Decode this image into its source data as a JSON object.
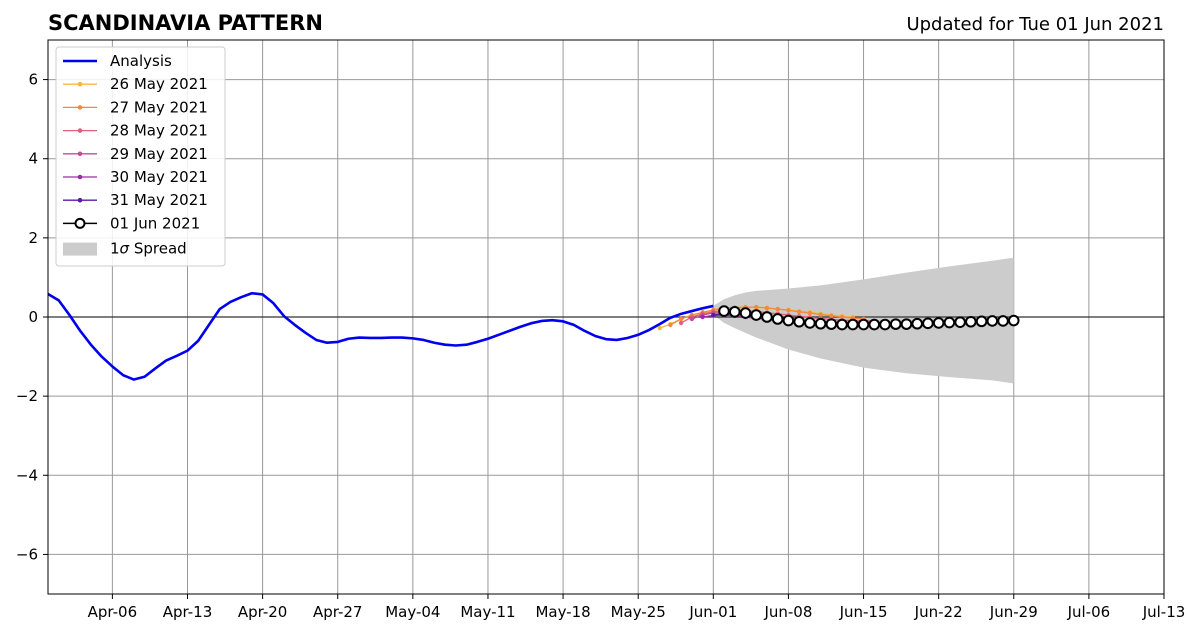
{
  "chart_data": {
    "type": "line",
    "title": "SCANDINAVIA PATTERN",
    "subtitle": "Updated for Tue 01 Jun 2021",
    "xlabel": "",
    "ylabel": "",
    "xlim": [
      "2021-03-31",
      "2021-07-13"
    ],
    "ylim": [
      -7,
      7
    ],
    "grid": true,
    "legend_position": "top-left",
    "x_ticks": [
      "Apr-06",
      "Apr-13",
      "Apr-20",
      "Apr-27",
      "May-04",
      "May-11",
      "May-18",
      "May-25",
      "Jun-01",
      "Jun-08",
      "Jun-15",
      "Jun-22",
      "Jun-29",
      "Jul-06",
      "Jul-13"
    ],
    "x_tick_dates": [
      "2021-04-06",
      "2021-04-13",
      "2021-04-20",
      "2021-04-27",
      "2021-05-04",
      "2021-05-11",
      "2021-05-18",
      "2021-05-25",
      "2021-06-01",
      "2021-06-08",
      "2021-06-15",
      "2021-06-22",
      "2021-06-29",
      "2021-07-06",
      "2021-07-13"
    ],
    "y_ticks": [
      6,
      4,
      2,
      0,
      -2,
      -4,
      -6
    ],
    "y_tick_labels": [
      "6",
      "4",
      "2",
      "0",
      "−2",
      "−4",
      "−6"
    ],
    "series": [
      {
        "name": "Analysis",
        "color": "#0000ee",
        "x": [
          "2021-03-31",
          "2021-04-01",
          "2021-04-02",
          "2021-04-03",
          "2021-04-04",
          "2021-04-05",
          "2021-04-06",
          "2021-04-07",
          "2021-04-08",
          "2021-04-09",
          "2021-04-10",
          "2021-04-11",
          "2021-04-12",
          "2021-04-13",
          "2021-04-14",
          "2021-04-15",
          "2021-04-16",
          "2021-04-17",
          "2021-04-18",
          "2021-04-19",
          "2021-04-20",
          "2021-04-21",
          "2021-04-22",
          "2021-04-23",
          "2021-04-24",
          "2021-04-25",
          "2021-04-26",
          "2021-04-27",
          "2021-04-28",
          "2021-04-29",
          "2021-04-30",
          "2021-05-01",
          "2021-05-02",
          "2021-05-03",
          "2021-05-04",
          "2021-05-05",
          "2021-05-06",
          "2021-05-07",
          "2021-05-08",
          "2021-05-09",
          "2021-05-10",
          "2021-05-11",
          "2021-05-12",
          "2021-05-13",
          "2021-05-14",
          "2021-05-15",
          "2021-05-16",
          "2021-05-17",
          "2021-05-18",
          "2021-05-19",
          "2021-05-20",
          "2021-05-21",
          "2021-05-22",
          "2021-05-23",
          "2021-05-24",
          "2021-05-25",
          "2021-05-26",
          "2021-05-27",
          "2021-05-28",
          "2021-05-29",
          "2021-05-30",
          "2021-05-31",
          "2021-06-01"
        ],
        "values": [
          0.58,
          0.42,
          0.05,
          -0.35,
          -0.7,
          -1.0,
          -1.25,
          -1.47,
          -1.58,
          -1.51,
          -1.3,
          -1.1,
          -0.98,
          -0.85,
          -0.6,
          -0.2,
          0.2,
          0.38,
          0.5,
          0.6,
          0.57,
          0.35,
          0.02,
          -0.2,
          -0.4,
          -0.58,
          -0.65,
          -0.63,
          -0.55,
          -0.52,
          -0.53,
          -0.53,
          -0.52,
          -0.52,
          -0.54,
          -0.58,
          -0.65,
          -0.7,
          -0.72,
          -0.7,
          -0.63,
          -0.55,
          -0.45,
          -0.35,
          -0.25,
          -0.16,
          -0.1,
          -0.08,
          -0.11,
          -0.2,
          -0.35,
          -0.48,
          -0.56,
          -0.58,
          -0.53,
          -0.45,
          -0.33,
          -0.18,
          -0.02,
          0.08,
          0.15,
          0.22,
          0.28
        ]
      },
      {
        "name": "26 May 2021",
        "color": "#f5b83d",
        "x": [
          "2021-05-27",
          "2021-05-28",
          "2021-05-29",
          "2021-05-30",
          "2021-05-31",
          "2021-06-01",
          "2021-06-02",
          "2021-06-03",
          "2021-06-04",
          "2021-06-05",
          "2021-06-06",
          "2021-06-07",
          "2021-06-08",
          "2021-06-09",
          "2021-06-10",
          "2021-06-11",
          "2021-06-12",
          "2021-06-13",
          "2021-06-14"
        ],
        "values": [
          -0.28,
          -0.18,
          -0.05,
          0.05,
          0.1,
          0.15,
          0.2,
          0.22,
          0.24,
          0.24,
          0.22,
          0.2,
          0.18,
          0.15,
          0.12,
          0.08,
          0.05,
          0.02,
          0.0
        ]
      },
      {
        "name": "27 May 2021",
        "color": "#f08a3e",
        "x": [
          "2021-05-28",
          "2021-05-29",
          "2021-05-30",
          "2021-05-31",
          "2021-06-01",
          "2021-06-02",
          "2021-06-03",
          "2021-06-04",
          "2021-06-05",
          "2021-06-06",
          "2021-06-07",
          "2021-06-08",
          "2021-06-09",
          "2021-06-10",
          "2021-06-11",
          "2021-06-12",
          "2021-06-13",
          "2021-06-14",
          "2021-06-15"
        ],
        "values": [
          -0.2,
          -0.05,
          0.05,
          0.12,
          0.18,
          0.22,
          0.24,
          0.25,
          0.25,
          0.23,
          0.2,
          0.17,
          0.13,
          0.1,
          0.06,
          0.03,
          0.0,
          -0.03,
          -0.05
        ]
      },
      {
        "name": "28 May 2021",
        "color": "#e0607a",
        "x": [
          "2021-05-29",
          "2021-05-30",
          "2021-05-31",
          "2021-06-01",
          "2021-06-02",
          "2021-06-03",
          "2021-06-04",
          "2021-06-05",
          "2021-06-06",
          "2021-06-07",
          "2021-06-08",
          "2021-06-09",
          "2021-06-10",
          "2021-06-11",
          "2021-06-12",
          "2021-06-13",
          "2021-06-14",
          "2021-06-15",
          "2021-06-16"
        ],
        "values": [
          -0.15,
          0.0,
          0.08,
          0.13,
          0.16,
          0.17,
          0.16,
          0.14,
          0.11,
          0.08,
          0.05,
          0.02,
          -0.01,
          -0.04,
          -0.06,
          -0.08,
          -0.09,
          -0.1,
          -0.1
        ]
      },
      {
        "name": "29 May 2021",
        "color": "#c24b9a",
        "x": [
          "2021-05-30",
          "2021-05-31",
          "2021-06-01",
          "2021-06-02",
          "2021-06-03",
          "2021-06-04",
          "2021-06-05",
          "2021-06-06",
          "2021-06-07",
          "2021-06-08",
          "2021-06-09",
          "2021-06-10",
          "2021-06-11",
          "2021-06-12",
          "2021-06-13",
          "2021-06-14",
          "2021-06-15",
          "2021-06-16",
          "2021-06-17"
        ],
        "values": [
          -0.05,
          0.05,
          0.1,
          0.1,
          0.08,
          0.05,
          0.02,
          -0.01,
          -0.04,
          -0.07,
          -0.09,
          -0.11,
          -0.13,
          -0.14,
          -0.15,
          -0.15,
          -0.15,
          -0.15,
          -0.15
        ]
      },
      {
        "name": "30 May 2021",
        "color": "#9a2aa8",
        "x": [
          "2021-05-31",
          "2021-06-01",
          "2021-06-02",
          "2021-06-03",
          "2021-06-04",
          "2021-06-05",
          "2021-06-06",
          "2021-06-07",
          "2021-06-08",
          "2021-06-09",
          "2021-06-10",
          "2021-06-11",
          "2021-06-12",
          "2021-06-13",
          "2021-06-14",
          "2021-06-15",
          "2021-06-16",
          "2021-06-17",
          "2021-06-18"
        ],
        "values": [
          0.0,
          0.04,
          0.05,
          0.03,
          0.0,
          -0.03,
          -0.06,
          -0.09,
          -0.12,
          -0.14,
          -0.16,
          -0.17,
          -0.18,
          -0.18,
          -0.18,
          -0.18,
          -0.18,
          -0.17,
          -0.17
        ]
      },
      {
        "name": "31 May 2021",
        "color": "#5c1aa6",
        "x": [
          "2021-06-01",
          "2021-06-02",
          "2021-06-03",
          "2021-06-04",
          "2021-06-05",
          "2021-06-06",
          "2021-06-07",
          "2021-06-08",
          "2021-06-09",
          "2021-06-10",
          "2021-06-11",
          "2021-06-12",
          "2021-06-13",
          "2021-06-14",
          "2021-06-15",
          "2021-06-16",
          "2021-06-17",
          "2021-06-18",
          "2021-06-19"
        ],
        "values": [
          0.05,
          0.08,
          0.07,
          0.05,
          0.02,
          -0.01,
          -0.04,
          -0.07,
          -0.1,
          -0.12,
          -0.14,
          -0.15,
          -0.16,
          -0.17,
          -0.17,
          -0.17,
          -0.17,
          -0.16,
          -0.16
        ]
      },
      {
        "name": "01 Jun 2021",
        "color": "#000000",
        "marker": "open-circle",
        "x": [
          "2021-06-02",
          "2021-06-03",
          "2021-06-04",
          "2021-06-05",
          "2021-06-06",
          "2021-06-07",
          "2021-06-08",
          "2021-06-09",
          "2021-06-10",
          "2021-06-11",
          "2021-06-12",
          "2021-06-13",
          "2021-06-14",
          "2021-06-15",
          "2021-06-16",
          "2021-06-17",
          "2021-06-18",
          "2021-06-19",
          "2021-06-20",
          "2021-06-21",
          "2021-06-22",
          "2021-06-23",
          "2021-06-24",
          "2021-06-25",
          "2021-06-26",
          "2021-06-27",
          "2021-06-28",
          "2021-06-29"
        ],
        "values": [
          0.15,
          0.13,
          0.1,
          0.05,
          0.0,
          -0.05,
          -0.09,
          -0.12,
          -0.15,
          -0.17,
          -0.18,
          -0.19,
          -0.19,
          -0.19,
          -0.19,
          -0.19,
          -0.18,
          -0.18,
          -0.17,
          -0.16,
          -0.15,
          -0.14,
          -0.13,
          -0.12,
          -0.11,
          -0.1,
          -0.1,
          -0.09
        ]
      }
    ],
    "spread": {
      "name": "1σ Spread",
      "label_prefix": "1",
      "label_symbol": "σ",
      "label_suffix": " Spread",
      "color": "#cccccc",
      "x": [
        "2021-06-01",
        "2021-06-02",
        "2021-06-03",
        "2021-06-04",
        "2021-06-05",
        "2021-06-06",
        "2021-06-08",
        "2021-06-11",
        "2021-06-15",
        "2021-06-19",
        "2021-06-23",
        "2021-06-27",
        "2021-06-29"
      ],
      "upper": [
        0.28,
        0.45,
        0.55,
        0.62,
        0.66,
        0.68,
        0.72,
        0.8,
        0.95,
        1.12,
        1.28,
        1.42,
        1.5
      ],
      "lower": [
        0.05,
        -0.15,
        -0.28,
        -0.4,
        -0.52,
        -0.62,
        -0.82,
        -1.05,
        -1.28,
        -1.42,
        -1.52,
        -1.6,
        -1.68
      ]
    }
  }
}
